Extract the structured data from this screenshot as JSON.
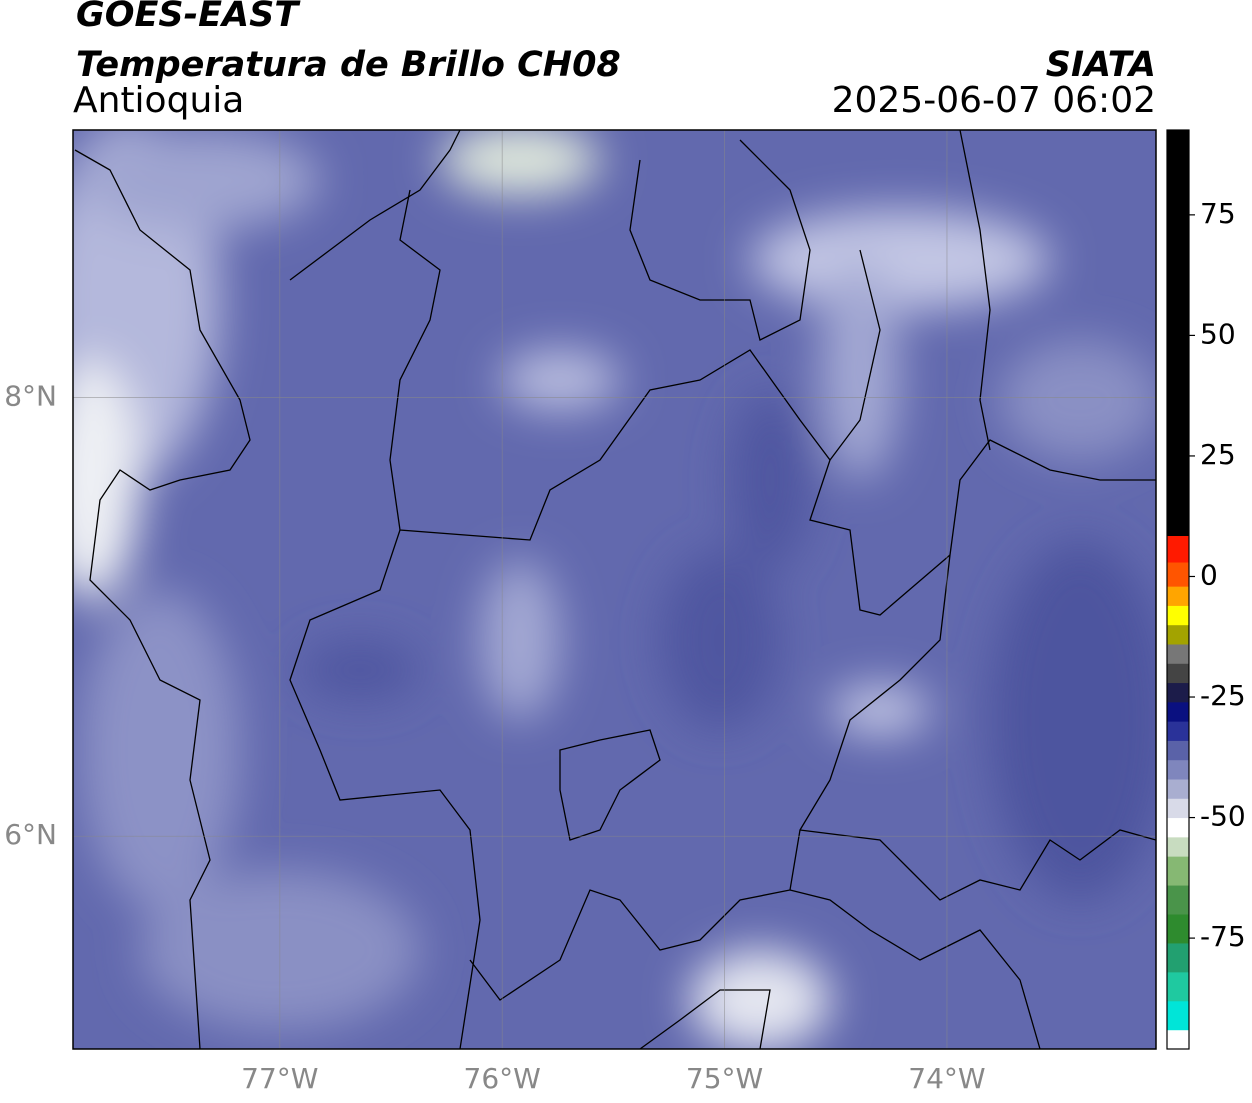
{
  "header": {
    "title": "GOES-EAST",
    "subtitle": "Temperatura de Brillo CH08",
    "region": "Antioquia",
    "source": "SIATA",
    "datetime": "2025-06-07 06:02"
  },
  "map": {
    "type": "map",
    "xlim": [
      -77.93,
      -73.06
    ],
    "ylim": [
      5.03,
      9.22
    ],
    "xticks": [
      {
        "value": -77,
        "label": "77°W"
      },
      {
        "value": -76,
        "label": "76°W"
      },
      {
        "value": -75,
        "label": "75°W"
      },
      {
        "value": -74,
        "label": "74°W"
      }
    ],
    "yticks": [
      {
        "value": 6,
        "label": "6°N"
      },
      {
        "value": 8,
        "label": "8°N"
      }
    ],
    "grid": true
  },
  "colorbar": {
    "lim": [
      -98,
      92.6
    ],
    "ticks": [
      75,
      50,
      25,
      0,
      -25,
      -50,
      -75
    ],
    "colors": [
      {
        "from": -98,
        "color": "#ffffff"
      },
      {
        "from": -94,
        "color": "#00e5d8"
      },
      {
        "from": -88,
        "color": "#1fc9a0"
      },
      {
        "from": -82,
        "color": "#22a070"
      },
      {
        "from": -76,
        "color": "#2e8b2e"
      },
      {
        "from": -70,
        "color": "#4a944a"
      },
      {
        "from": -64,
        "color": "#86b873"
      },
      {
        "from": -58,
        "color": "#c8dcc0"
      },
      {
        "from": -54,
        "color": "#ffffff"
      },
      {
        "from": -50,
        "color": "#d8dae8"
      },
      {
        "from": -46,
        "color": "#a9aed0"
      },
      {
        "from": -42,
        "color": "#7f86bd"
      },
      {
        "from": -38,
        "color": "#5a62a8"
      },
      {
        "from": -34,
        "color": "#2a3299"
      },
      {
        "from": -30,
        "color": "#0a1080"
      },
      {
        "from": -26,
        "color": "#1c1c4a"
      },
      {
        "from": -22,
        "color": "#444444"
      },
      {
        "from": -18,
        "color": "#777777"
      },
      {
        "from": -14,
        "color": "#a3a300"
      },
      {
        "from": -10,
        "color": "#ffff00"
      },
      {
        "from": -6,
        "color": "#ffa500"
      },
      {
        "from": -2,
        "color": "#ff5500"
      },
      {
        "from": 3,
        "color": "#ff1a00"
      },
      {
        "from": 8.5,
        "color": "#000000"
      }
    ]
  }
}
